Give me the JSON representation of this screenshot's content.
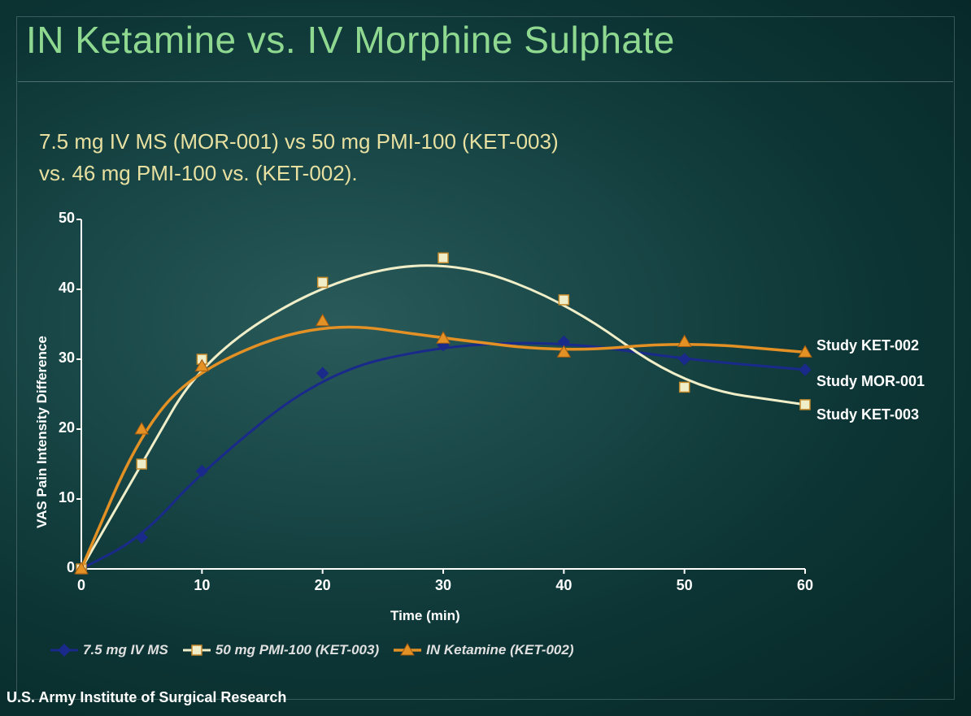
{
  "title": "IN Ketamine vs. IV Morphine Sulphate",
  "subtitle_line1": "7.5 mg IV MS (MOR-001) vs 50 mg PMI-100 (KET-003)",
  "subtitle_line2": "vs. 46 mg PMI-100 vs. (KET-002).",
  "footer": "U.S. Army Institute of Surgical Research",
  "chart": {
    "type": "line",
    "xlabel": "Time (min)",
    "ylabel": "VAS Pain Intensity Difference",
    "xlim": [
      0,
      60
    ],
    "ylim": [
      0,
      50
    ],
    "xticks": [
      0,
      10,
      20,
      30,
      40,
      50,
      60
    ],
    "yticks": [
      0,
      10,
      20,
      30,
      40,
      50
    ],
    "x_values": [
      0,
      5,
      10,
      20,
      30,
      40,
      50,
      60
    ],
    "background": "transparent",
    "axis_color": "#ffffff",
    "axis_width": 2,
    "tick_fontsize": 18,
    "label_fontsize": 17,
    "series": [
      {
        "name": "7.5 mg IV MS",
        "label_right": "Study MOR-001",
        "color": "#1a2a8a",
        "marker": "diamond",
        "marker_fill": "#1a2a8a",
        "marker_stroke": "#1a2a8a",
        "line_width": 3,
        "y": [
          0,
          4.5,
          14,
          28,
          32,
          32.5,
          30,
          28.5
        ]
      },
      {
        "name": "50 mg PMI-100 (KET-003)",
        "label_right": "Study KET-003",
        "color": "#f0eec8",
        "marker": "square",
        "marker_fill": "#f0eec8",
        "marker_stroke": "#c58a2a",
        "line_width": 3,
        "y": [
          0,
          15,
          30,
          41,
          44.5,
          38.5,
          26,
          23.5
        ]
      },
      {
        "name": "IN Ketamine (KET-002)",
        "label_right": "Study KET-002",
        "color": "#e39024",
        "marker": "triangle",
        "marker_fill": "#e39024",
        "marker_stroke": "#a05a10",
        "line_width": 3.5,
        "y": [
          0,
          20,
          29,
          35.5,
          33,
          31,
          32.5,
          31
        ]
      }
    ],
    "legend_symbols": {
      "diamond_size": 14,
      "square_size": 12,
      "triangle_size": 14
    },
    "series_label_positions": [
      {
        "key": "Study KET-002",
        "y_at_end": 31,
        "dy": -8
      },
      {
        "key": "Study MOR-001",
        "y_at_end": 28.5,
        "dy": 14
      },
      {
        "key": "Study KET-003",
        "y_at_end": 23.5,
        "dy": 12
      }
    ]
  },
  "colors": {
    "title": "#8fd890",
    "subtitle": "#e8e0a0",
    "text": "#ffffff"
  }
}
